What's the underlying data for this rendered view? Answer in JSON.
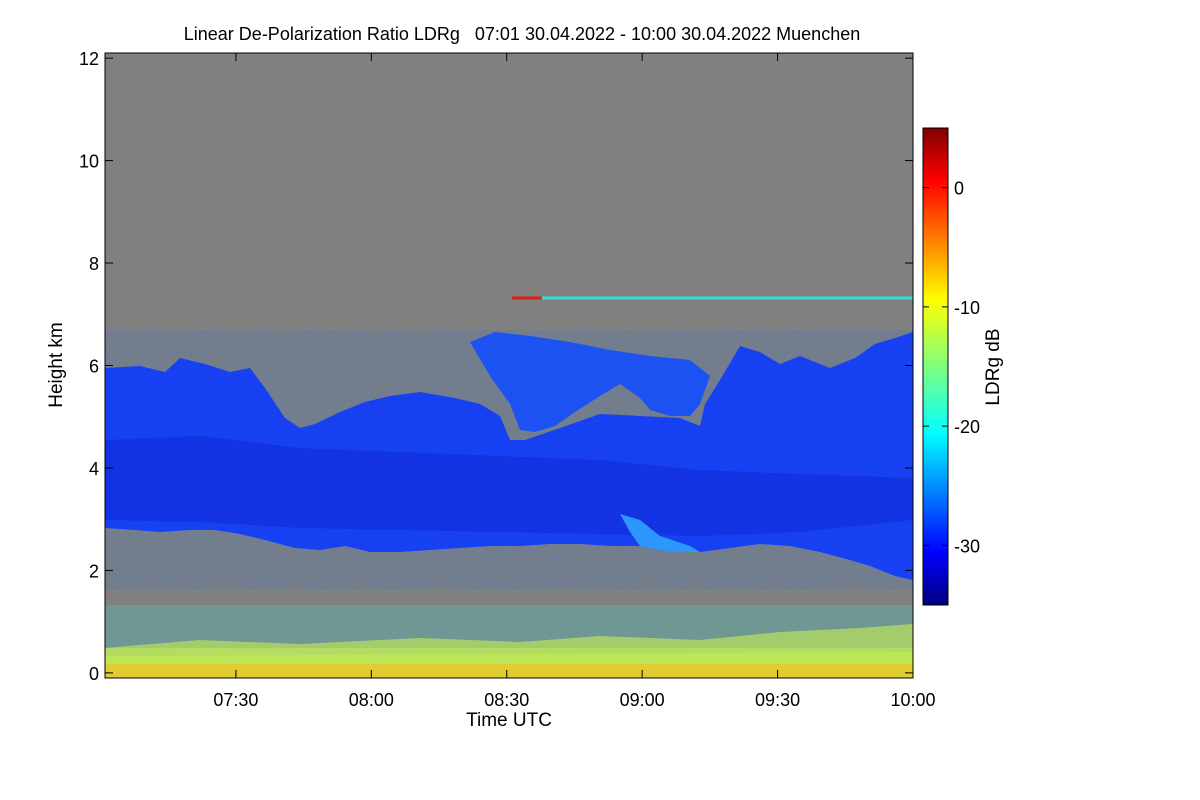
{
  "chart_data": {
    "type": "heatmap",
    "title": "Linear De-Polarization Ratio LDRg   07:01 30.04.2022 - 10:00 30.04.2022 Muenchen",
    "xlabel": "Time UTC",
    "ylabel": "Height km",
    "x_range": [
      "07:01",
      "10:00"
    ],
    "ylim": [
      -0.1,
      12.1
    ],
    "x_ticks": [
      "07:30",
      "08:00",
      "08:30",
      "09:00",
      "09:30",
      "10:00"
    ],
    "y_ticks": [
      "0",
      "2",
      "4",
      "6",
      "8",
      "10",
      "12"
    ],
    "colorbar": {
      "label": "LDRg dB",
      "range": [
        -35,
        5
      ],
      "ticks": [
        "0",
        "-10",
        "-20",
        "-30"
      ],
      "colormap": "jet"
    },
    "background_color": "#808080",
    "features": [
      {
        "name": "cloud layer",
        "time_start": "07:01",
        "time_end": "10:00",
        "base_km": 2.7,
        "top_km": 6.0,
        "ldr_db": -30
      },
      {
        "name": "thin layer",
        "time_start": "08:39",
        "time_end": "10:00",
        "height_km": 7.3,
        "ldr_db": -20
      },
      {
        "name": "boundary layer aerosol",
        "time_start": "07:01",
        "time_end": "10:00",
        "base_km": 0.0,
        "top_km": 1.0,
        "ldr_db": -10
      }
    ]
  }
}
